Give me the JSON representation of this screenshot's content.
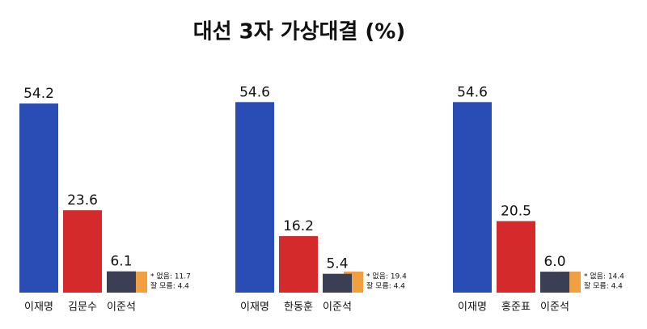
{
  "title": "대선  3자 가상대결 (%)",
  "chart_data": [
    {
      "type": "bar",
      "categories": [
        "이재명",
        "김문수",
        "이준석"
      ],
      "values": [
        54.2,
        23.6,
        6.1
      ],
      "colors": [
        "#2a4db5",
        "#d52a2c",
        "#3b3f55"
      ],
      "ylim": [
        0,
        60
      ],
      "notes": [
        "* 없음: 11.7",
        "잘 모름: 4.4"
      ]
    },
    {
      "type": "bar",
      "categories": [
        "이재명",
        "한동훈",
        "이준석"
      ],
      "values": [
        54.6,
        16.2,
        5.4
      ],
      "colors": [
        "#2a4db5",
        "#d52a2c",
        "#3b3f55"
      ],
      "ylim": [
        0,
        60
      ],
      "notes": [
        "* 없음: 19.4",
        "잘 모름: 4.4"
      ]
    },
    {
      "type": "bar",
      "categories": [
        "이재명",
        "홍준표",
        "이준석"
      ],
      "values": [
        54.6,
        20.5,
        6.0
      ],
      "value_labels": [
        "54.6",
        "20.5",
        "6.0"
      ],
      "colors": [
        "#2a4db5",
        "#d52a2c",
        "#3b3f55"
      ],
      "ylim": [
        0,
        60
      ],
      "notes": [
        "* 없음: 14.4",
        "잘 모름: 4.4"
      ]
    }
  ]
}
